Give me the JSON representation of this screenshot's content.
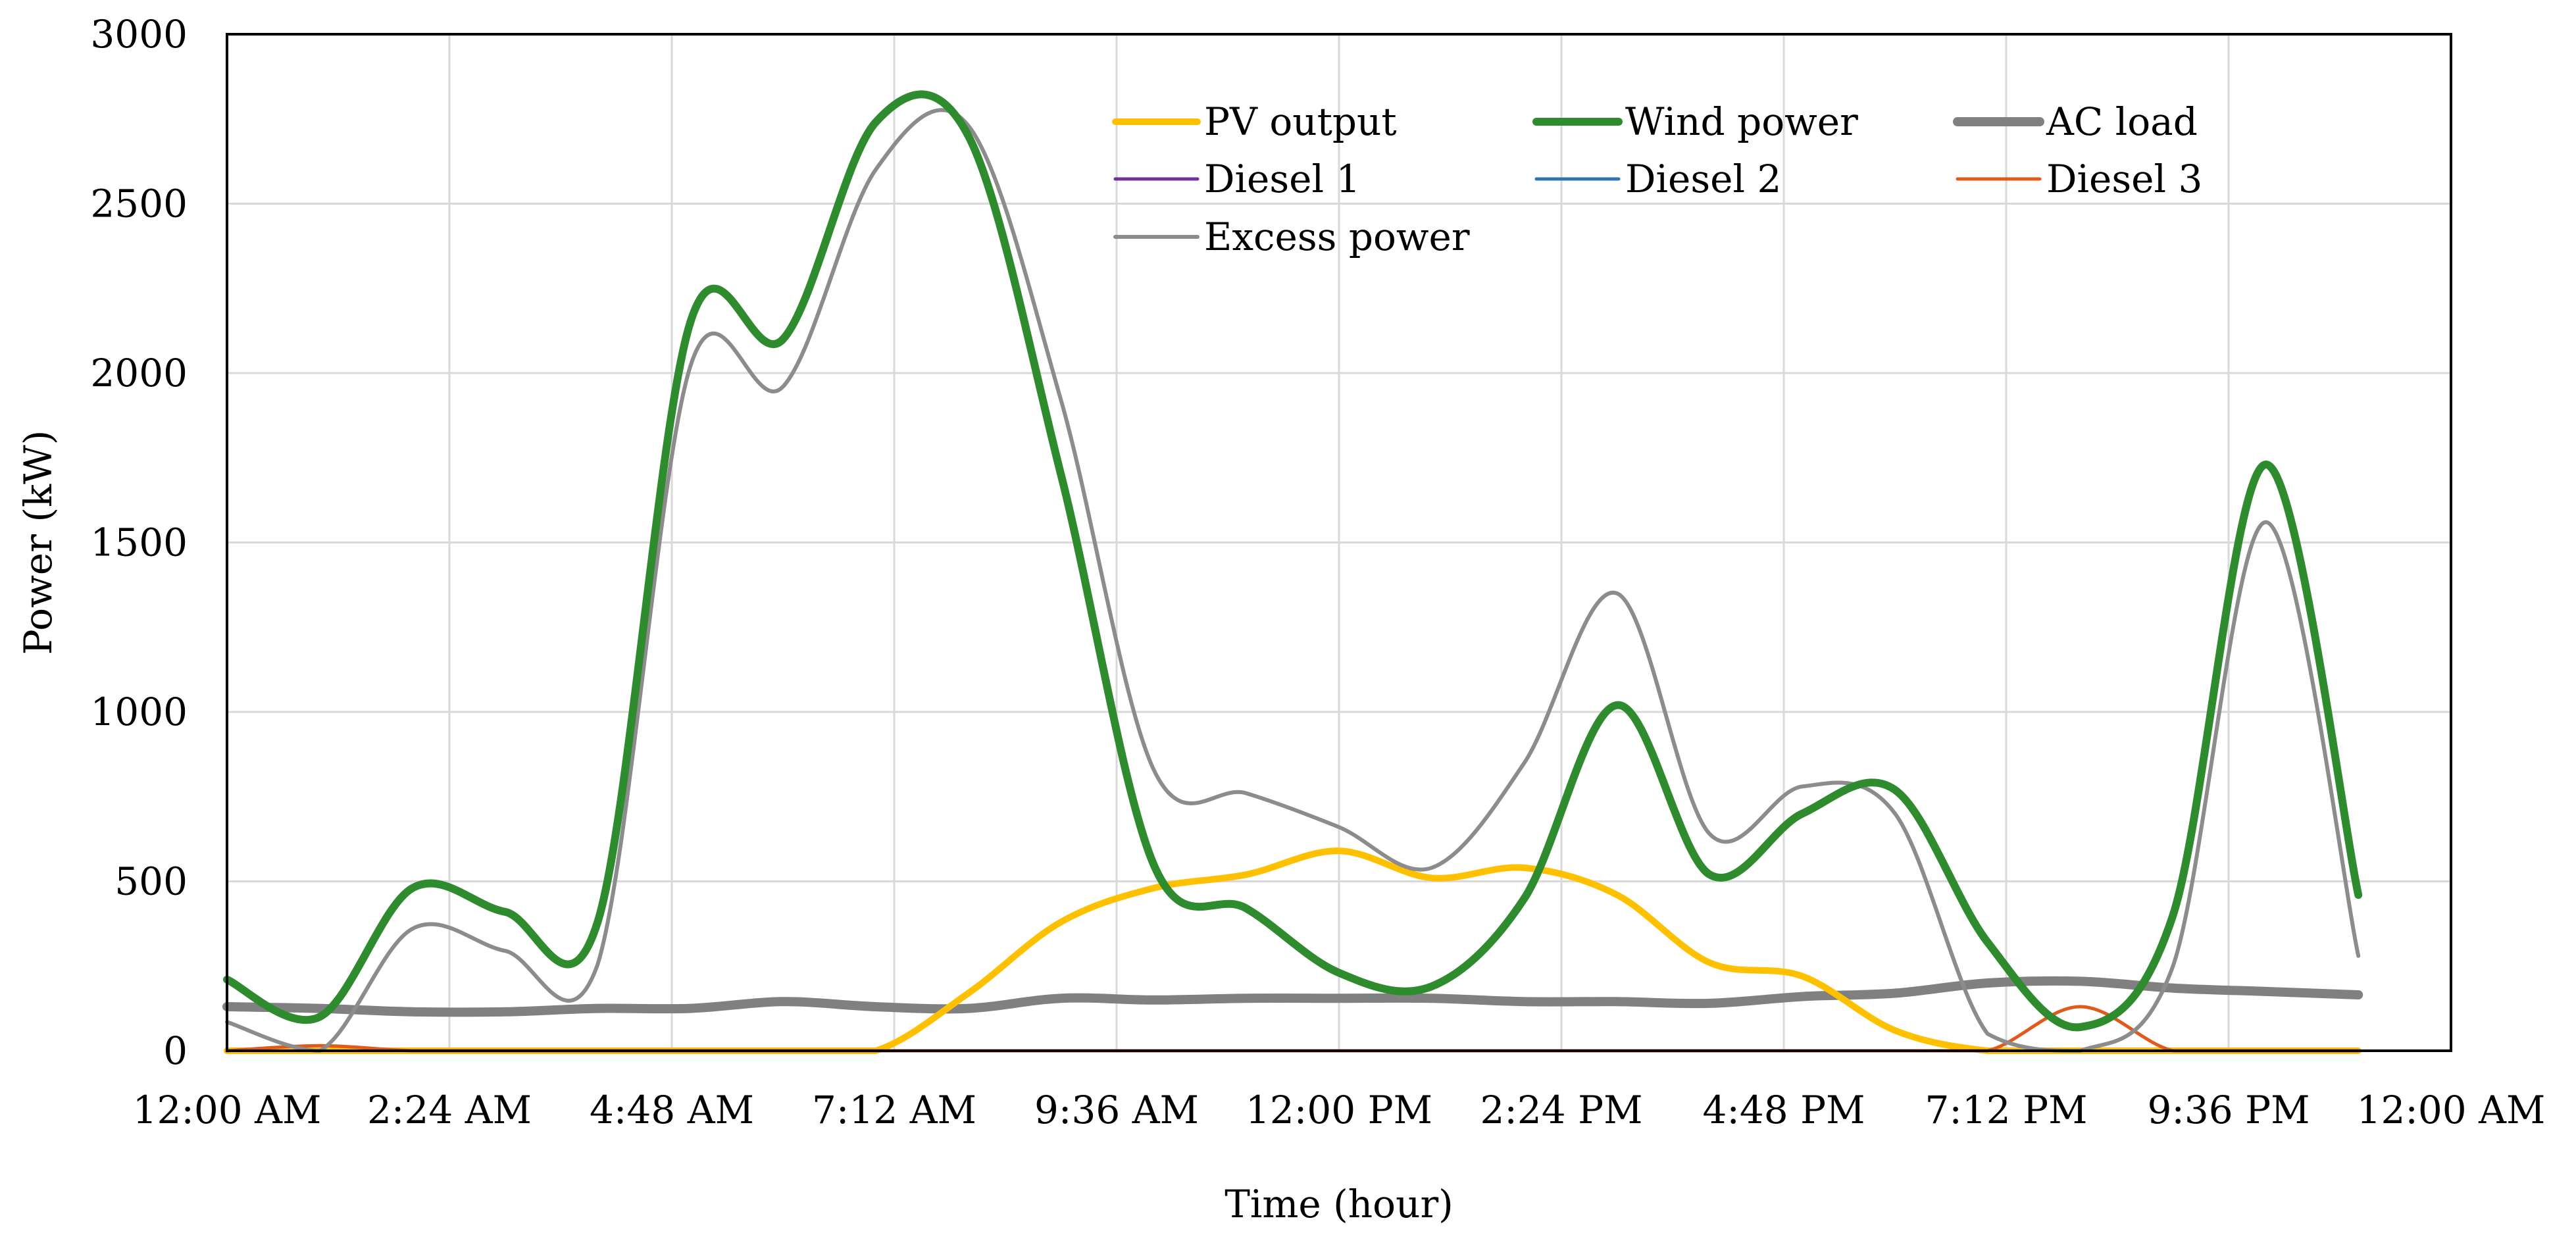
{
  "chart_data": {
    "type": "line",
    "title": "",
    "xlabel": "Time (hour)",
    "ylabel": "Power (kW)",
    "ylim": [
      0,
      3000
    ],
    "xlim": [
      0,
      24
    ],
    "yticks": [
      0,
      500,
      1000,
      1500,
      2000,
      2500,
      3000
    ],
    "xticks": [
      {
        "value": 0,
        "label": "12:00 AM"
      },
      {
        "value": 2.4,
        "label": "2:24 AM"
      },
      {
        "value": 4.8,
        "label": "4:48 AM"
      },
      {
        "value": 7.2,
        "label": "7:12 AM"
      },
      {
        "value": 9.6,
        "label": "9:36 AM"
      },
      {
        "value": 12,
        "label": "12:00 PM"
      },
      {
        "value": 14.4,
        "label": "2:24 PM"
      },
      {
        "value": 16.8,
        "label": "4:48 PM"
      },
      {
        "value": 19.2,
        "label": "7:12 PM"
      },
      {
        "value": 21.6,
        "label": "9:36 PM"
      },
      {
        "value": 24,
        "label": "12:00 AM"
      }
    ],
    "grid": true,
    "x": [
      0,
      1,
      2,
      3,
      4,
      5,
      6,
      7,
      8,
      9,
      10,
      11,
      12,
      13,
      14,
      15,
      16,
      17,
      18,
      19,
      20,
      21,
      22,
      23
    ],
    "series": [
      {
        "name": "PV output",
        "color": "#FFC000",
        "width": 10,
        "values": [
          0,
          0,
          0,
          0,
          0,
          0,
          0,
          0,
          170,
          380,
          480,
          520,
          590,
          510,
          540,
          460,
          260,
          220,
          60,
          0,
          0,
          0,
          0,
          0
        ]
      },
      {
        "name": "Wind power",
        "color": "#2E8B2E",
        "width": 12,
        "values": [
          210,
          100,
          480,
          410,
          380,
          2150,
          2100,
          2740,
          2700,
          1700,
          550,
          420,
          230,
          190,
          450,
          1020,
          520,
          700,
          770,
          320,
          70,
          400,
          1730,
          460
        ]
      },
      {
        "name": "AC load",
        "color": "#808080",
        "width": 14,
        "values": [
          130,
          125,
          115,
          115,
          125,
          125,
          145,
          130,
          125,
          155,
          150,
          155,
          155,
          155,
          145,
          145,
          140,
          160,
          170,
          200,
          205,
          185,
          175,
          165
        ]
      },
      {
        "name": "Diesel 1",
        "color": "#7030A0",
        "width": 4,
        "values": [
          0,
          0,
          0,
          0,
          0,
          0,
          0,
          0,
          0,
          0,
          0,
          0,
          0,
          0,
          0,
          0,
          0,
          0,
          0,
          0,
          0,
          0,
          0,
          0
        ]
      },
      {
        "name": "Diesel 2",
        "color": "#2E75B6",
        "width": 4,
        "values": [
          0,
          0,
          0,
          0,
          0,
          0,
          0,
          0,
          0,
          0,
          0,
          0,
          0,
          0,
          0,
          0,
          0,
          0,
          0,
          0,
          0,
          0,
          0,
          0
        ]
      },
      {
        "name": "Diesel 3",
        "color": "#E05A1B",
        "width": 5,
        "values": [
          0,
          15,
          0,
          0,
          0,
          0,
          0,
          0,
          0,
          0,
          0,
          0,
          0,
          0,
          0,
          0,
          0,
          0,
          0,
          0,
          130,
          0,
          0,
          0
        ]
      },
      {
        "name": "Excess power",
        "color": "#8C8C8C",
        "width": 6,
        "values": [
          85,
          0,
          360,
          295,
          255,
          2020,
          1960,
          2600,
          2730,
          1920,
          830,
          760,
          660,
          540,
          850,
          1350,
          640,
          780,
          700,
          50,
          0,
          250,
          1560,
          280
        ]
      }
    ],
    "legend": {
      "position": "top-right",
      "entries": [
        "PV output",
        "Wind power",
        "AC load",
        "Diesel 1",
        "Diesel 2",
        "Diesel 3",
        "Excess power"
      ]
    }
  }
}
